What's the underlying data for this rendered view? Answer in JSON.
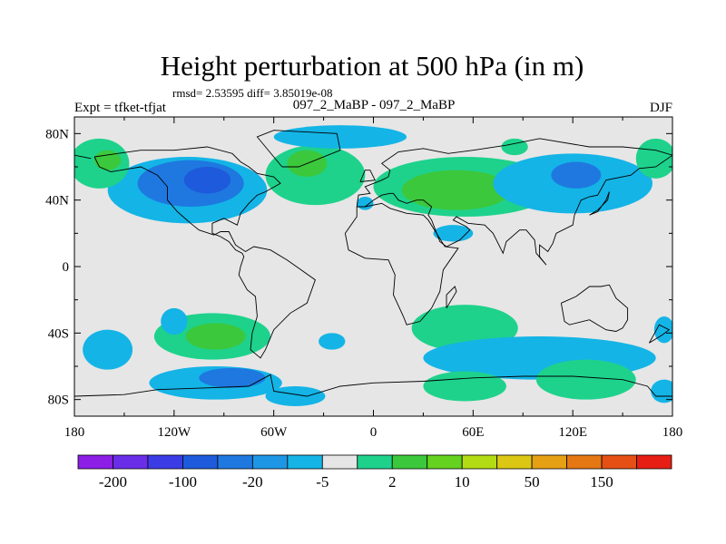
{
  "title": "Height perturbation at 500 hPa (in m)",
  "stats": "rmsd= 2.53595 diff= 3.85019e-08",
  "left_label": "Expt = tfket-tfjat",
  "center_label": "097_2_MaBP - 097_2_MaBP",
  "right_label": "DJF",
  "chart_data": {
    "type": "heatmap",
    "x_ticks": [
      "180",
      "120W",
      "60W",
      "0",
      "60E",
      "120E",
      "180"
    ],
    "x_tick_values": [
      -180,
      -120,
      -60,
      0,
      60,
      120,
      180
    ],
    "y_ticks": [
      "80N",
      "40N",
      "0",
      "40S",
      "80S"
    ],
    "y_tick_values": [
      80,
      40,
      0,
      -40,
      -80
    ],
    "xlim": [
      -180,
      180
    ],
    "ylim": [
      -90,
      90
    ],
    "colorbar": {
      "colors": [
        "#8c1ee6",
        "#6a2ee8",
        "#3c3ce6",
        "#1e5adc",
        "#1e78e0",
        "#1e96e6",
        "#14b4e6",
        "#e6e6e6",
        "#1ed28c",
        "#3cc83c",
        "#64d21e",
        "#b4dc14",
        "#dcc814",
        "#e6a014",
        "#e67814",
        "#e65014",
        "#e61e14"
      ],
      "labels": [
        "-200",
        "-100",
        "-20",
        "-5",
        "2",
        "10",
        "50",
        "150"
      ],
      "label_boundaries": [
        1,
        3,
        5,
        7,
        9,
        11,
        13,
        15
      ]
    },
    "blobs": [
      {
        "lon": -112,
        "lat": 46,
        "rx": 48,
        "ry": 20,
        "level": -5
      },
      {
        "lon": -110,
        "lat": 50,
        "rx": 32,
        "ry": 14,
        "level": -20
      },
      {
        "lon": -100,
        "lat": 52,
        "rx": 14,
        "ry": 8,
        "level": -100
      },
      {
        "lon": -165,
        "lat": 62,
        "rx": 18,
        "ry": 15,
        "level": 2
      },
      {
        "lon": -160,
        "lat": 64,
        "rx": 8,
        "ry": 6,
        "level": 10
      },
      {
        "lon": -35,
        "lat": 55,
        "rx": 30,
        "ry": 18,
        "level": 2
      },
      {
        "lon": -40,
        "lat": 62,
        "rx": 12,
        "ry": 8,
        "level": 10
      },
      {
        "lon": -20,
        "lat": 78,
        "rx": 40,
        "ry": 7,
        "level": -5
      },
      {
        "lon": 55,
        "lat": 48,
        "rx": 55,
        "ry": 18,
        "level": 2
      },
      {
        "lon": 50,
        "lat": 46,
        "rx": 33,
        "ry": 12,
        "level": 10
      },
      {
        "lon": 120,
        "lat": 50,
        "rx": 48,
        "ry": 18,
        "level": -5
      },
      {
        "lon": 122,
        "lat": 55,
        "rx": 15,
        "ry": 8,
        "level": -20
      },
      {
        "lon": 170,
        "lat": 65,
        "rx": 12,
        "ry": 12,
        "level": 2
      },
      {
        "lon": 85,
        "lat": 72,
        "rx": 8,
        "ry": 5,
        "level": 2
      },
      {
        "lon": -5,
        "lat": 38,
        "rx": 5,
        "ry": 4,
        "level": -5
      },
      {
        "lon": 48,
        "lat": 20,
        "rx": 12,
        "ry": 5,
        "level": -5
      },
      {
        "lon": -95,
        "lat": -70,
        "rx": 40,
        "ry": 10,
        "level": -5
      },
      {
        "lon": -85,
        "lat": -67,
        "rx": 20,
        "ry": 6,
        "level": -20
      },
      {
        "lon": -160,
        "lat": -50,
        "rx": 15,
        "ry": 12,
        "level": -5
      },
      {
        "lon": -97,
        "lat": -42,
        "rx": 35,
        "ry": 14,
        "level": 2
      },
      {
        "lon": -95,
        "lat": -42,
        "rx": 18,
        "ry": 8,
        "level": 10
      },
      {
        "lon": -47,
        "lat": -78,
        "rx": 18,
        "ry": 6,
        "level": -5
      },
      {
        "lon": -120,
        "lat": -33,
        "rx": 8,
        "ry": 8,
        "level": -5
      },
      {
        "lon": -25,
        "lat": -45,
        "rx": 8,
        "ry": 5,
        "level": -5
      },
      {
        "lon": 55,
        "lat": -37,
        "rx": 32,
        "ry": 14,
        "level": 2
      },
      {
        "lon": 100,
        "lat": -55,
        "rx": 70,
        "ry": 13,
        "level": -5
      },
      {
        "lon": 128,
        "lat": -68,
        "rx": 30,
        "ry": 12,
        "level": 2
      },
      {
        "lon": 55,
        "lat": -72,
        "rx": 25,
        "ry": 9,
        "level": 2
      },
      {
        "lon": 175,
        "lat": -38,
        "rx": 6,
        "ry": 8,
        "level": -5
      },
      {
        "lon": 175,
        "lat": -75,
        "rx": 8,
        "ry": 7,
        "level": -5
      }
    ],
    "coastlines": [
      [
        [
          -168,
          66
        ],
        [
          -140,
          70
        ],
        [
          -120,
          70
        ],
        [
          -100,
          72
        ],
        [
          -85,
          68
        ],
        [
          -80,
          63
        ],
        [
          -75,
          60
        ],
        [
          -70,
          56
        ],
        [
          -60,
          54
        ],
        [
          -56,
          50
        ],
        [
          -65,
          45
        ],
        [
          -70,
          43
        ],
        [
          -75,
          38
        ],
        [
          -80,
          32
        ],
        [
          -82,
          25
        ],
        [
          -90,
          29
        ],
        [
          -97,
          26
        ],
        [
          -97,
          20
        ],
        [
          -92,
          18
        ],
        [
          -87,
          15
        ],
        [
          -83,
          10
        ],
        [
          -79,
          8
        ],
        [
          -78,
          6
        ],
        [
          -80,
          0
        ],
        [
          -81,
          -5
        ],
        [
          -76,
          -14
        ],
        [
          -71,
          -18
        ],
        [
          -70,
          -30
        ],
        [
          -73,
          -40
        ],
        [
          -74,
          -50
        ],
        [
          -68,
          -55
        ],
        [
          -65,
          -50
        ],
        [
          -60,
          -38
        ],
        [
          -50,
          -28
        ],
        [
          -40,
          -22
        ],
        [
          -35,
          -8
        ],
        [
          -45,
          -1
        ],
        [
          -52,
          4
        ],
        [
          -62,
          10
        ],
        [
          -72,
          12
        ],
        [
          -77,
          9
        ],
        [
          -83,
          13
        ],
        [
          -87,
          21
        ],
        [
          -92,
          21
        ],
        [
          -96,
          19
        ],
        [
          -105,
          22
        ],
        [
          -110,
          26
        ],
        [
          -118,
          33
        ],
        [
          -124,
          40
        ],
        [
          -124,
          48
        ],
        [
          -130,
          55
        ],
        [
          -140,
          60
        ],
        [
          -152,
          58
        ],
        [
          -158,
          57
        ],
        [
          -165,
          60
        ],
        [
          -168,
          66
        ]
      ],
      [
        [
          -55,
          60
        ],
        [
          -45,
          60
        ],
        [
          -20,
          70
        ],
        [
          -22,
          80
        ],
        [
          -60,
          82
        ],
        [
          -70,
          78
        ],
        [
          -55,
          60
        ]
      ],
      [
        [
          -10,
          36
        ],
        [
          -5,
          36
        ],
        [
          5,
          38
        ],
        [
          10,
          35
        ],
        [
          20,
          32
        ],
        [
          30,
          31
        ],
        [
          33,
          28
        ],
        [
          43,
          12
        ],
        [
          51,
          11
        ],
        [
          42,
          -2
        ],
        [
          40,
          -15
        ],
        [
          35,
          -25
        ],
        [
          28,
          -33
        ],
        [
          20,
          -35
        ],
        [
          18,
          -30
        ],
        [
          12,
          -17
        ],
        [
          13,
          -5
        ],
        [
          9,
          4
        ],
        [
          -5,
          5
        ],
        [
          -15,
          10
        ],
        [
          -17,
          20
        ],
        [
          -10,
          30
        ],
        [
          -10,
          36
        ]
      ],
      [
        [
          -10,
          36
        ],
        [
          -9,
          43
        ],
        [
          -2,
          44
        ],
        [
          -5,
          48
        ],
        [
          5,
          52
        ],
        [
          9,
          54
        ],
        [
          10,
          58
        ],
        [
          5,
          62
        ],
        [
          15,
          69
        ],
        [
          30,
          71
        ],
        [
          45,
          68
        ],
        [
          60,
          70
        ],
        [
          80,
          73
        ],
        [
          100,
          77
        ],
        [
          130,
          72
        ],
        [
          150,
          72
        ],
        [
          170,
          70
        ],
        [
          180,
          67
        ]
      ],
      [
        [
          -180,
          67
        ],
        [
          -170,
          65
        ]
      ],
      [
        [
          180,
          67
        ],
        [
          170,
          60
        ],
        [
          160,
          59
        ],
        [
          155,
          55
        ],
        [
          140,
          52
        ],
        [
          135,
          43
        ],
        [
          130,
          42
        ],
        [
          125,
          40
        ],
        [
          121,
          31
        ],
        [
          120,
          25
        ],
        [
          110,
          20
        ],
        [
          108,
          14
        ],
        [
          105,
          9
        ],
        [
          100,
          13
        ],
        [
          100,
          6
        ],
        [
          104,
          1
        ],
        [
          98,
          8
        ],
        [
          97,
          16
        ],
        [
          92,
          22
        ],
        [
          88,
          22
        ],
        [
          80,
          15
        ],
        [
          78,
          8
        ],
        [
          72,
          20
        ],
        [
          67,
          25
        ],
        [
          57,
          26
        ],
        [
          50,
          30
        ],
        [
          48,
          28
        ],
        [
          56,
          24
        ],
        [
          58,
          22
        ],
        [
          52,
          16
        ],
        [
          44,
          12
        ],
        [
          40,
          15
        ],
        [
          35,
          28
        ],
        [
          33,
          31
        ],
        [
          35,
          36
        ],
        [
          30,
          40
        ],
        [
          26,
          40
        ],
        [
          20,
          38
        ],
        [
          15,
          40
        ],
        [
          12,
          44
        ],
        [
          10,
          44
        ],
        [
          5,
          43
        ],
        [
          0,
          40
        ],
        [
          -5,
          36
        ]
      ],
      [
        [
          113,
          -22
        ],
        [
          122,
          -18
        ],
        [
          130,
          -12
        ],
        [
          137,
          -12
        ],
        [
          142,
          -11
        ],
        [
          146,
          -19
        ],
        [
          153,
          -25
        ],
        [
          153,
          -32
        ],
        [
          150,
          -37
        ],
        [
          146,
          -39
        ],
        [
          140,
          -38
        ],
        [
          135,
          -35
        ],
        [
          130,
          -32
        ],
        [
          118,
          -35
        ],
        [
          115,
          -33
        ],
        [
          113,
          -22
        ]
      ],
      [
        [
          -180,
          -78
        ],
        [
          -150,
          -77
        ],
        [
          -130,
          -74
        ],
        [
          -100,
          -73
        ],
        [
          -75,
          -72
        ],
        [
          -62,
          -65
        ],
        [
          -60,
          -75
        ],
        [
          -40,
          -78
        ],
        [
          -20,
          -72
        ],
        [
          0,
          -70
        ],
        [
          30,
          -69
        ],
        [
          60,
          -67
        ],
        [
          90,
          -66
        ],
        [
          120,
          -66
        ],
        [
          150,
          -68
        ],
        [
          165,
          -72
        ],
        [
          170,
          -78
        ],
        [
          180,
          -78
        ]
      ],
      [
        [
          -8,
          51
        ],
        [
          -5,
          58
        ],
        [
          -2,
          58
        ],
        [
          1,
          52
        ],
        [
          -8,
          51
        ]
      ],
      [
        [
          44,
          -25
        ],
        [
          50,
          -15
        ],
        [
          49,
          -12
        ],
        [
          44,
          -17
        ],
        [
          44,
          -25
        ]
      ],
      [
        [
          130,
          31
        ],
        [
          135,
          34
        ],
        [
          141,
          40
        ],
        [
          142,
          45
        ],
        [
          140,
          40
        ],
        [
          135,
          33
        ],
        [
          130,
          31
        ]
      ],
      [
        [
          166,
          -46
        ],
        [
          174,
          -41
        ],
        [
          178,
          -38
        ],
        [
          172,
          -35
        ],
        [
          166,
          -46
        ]
      ]
    ]
  }
}
